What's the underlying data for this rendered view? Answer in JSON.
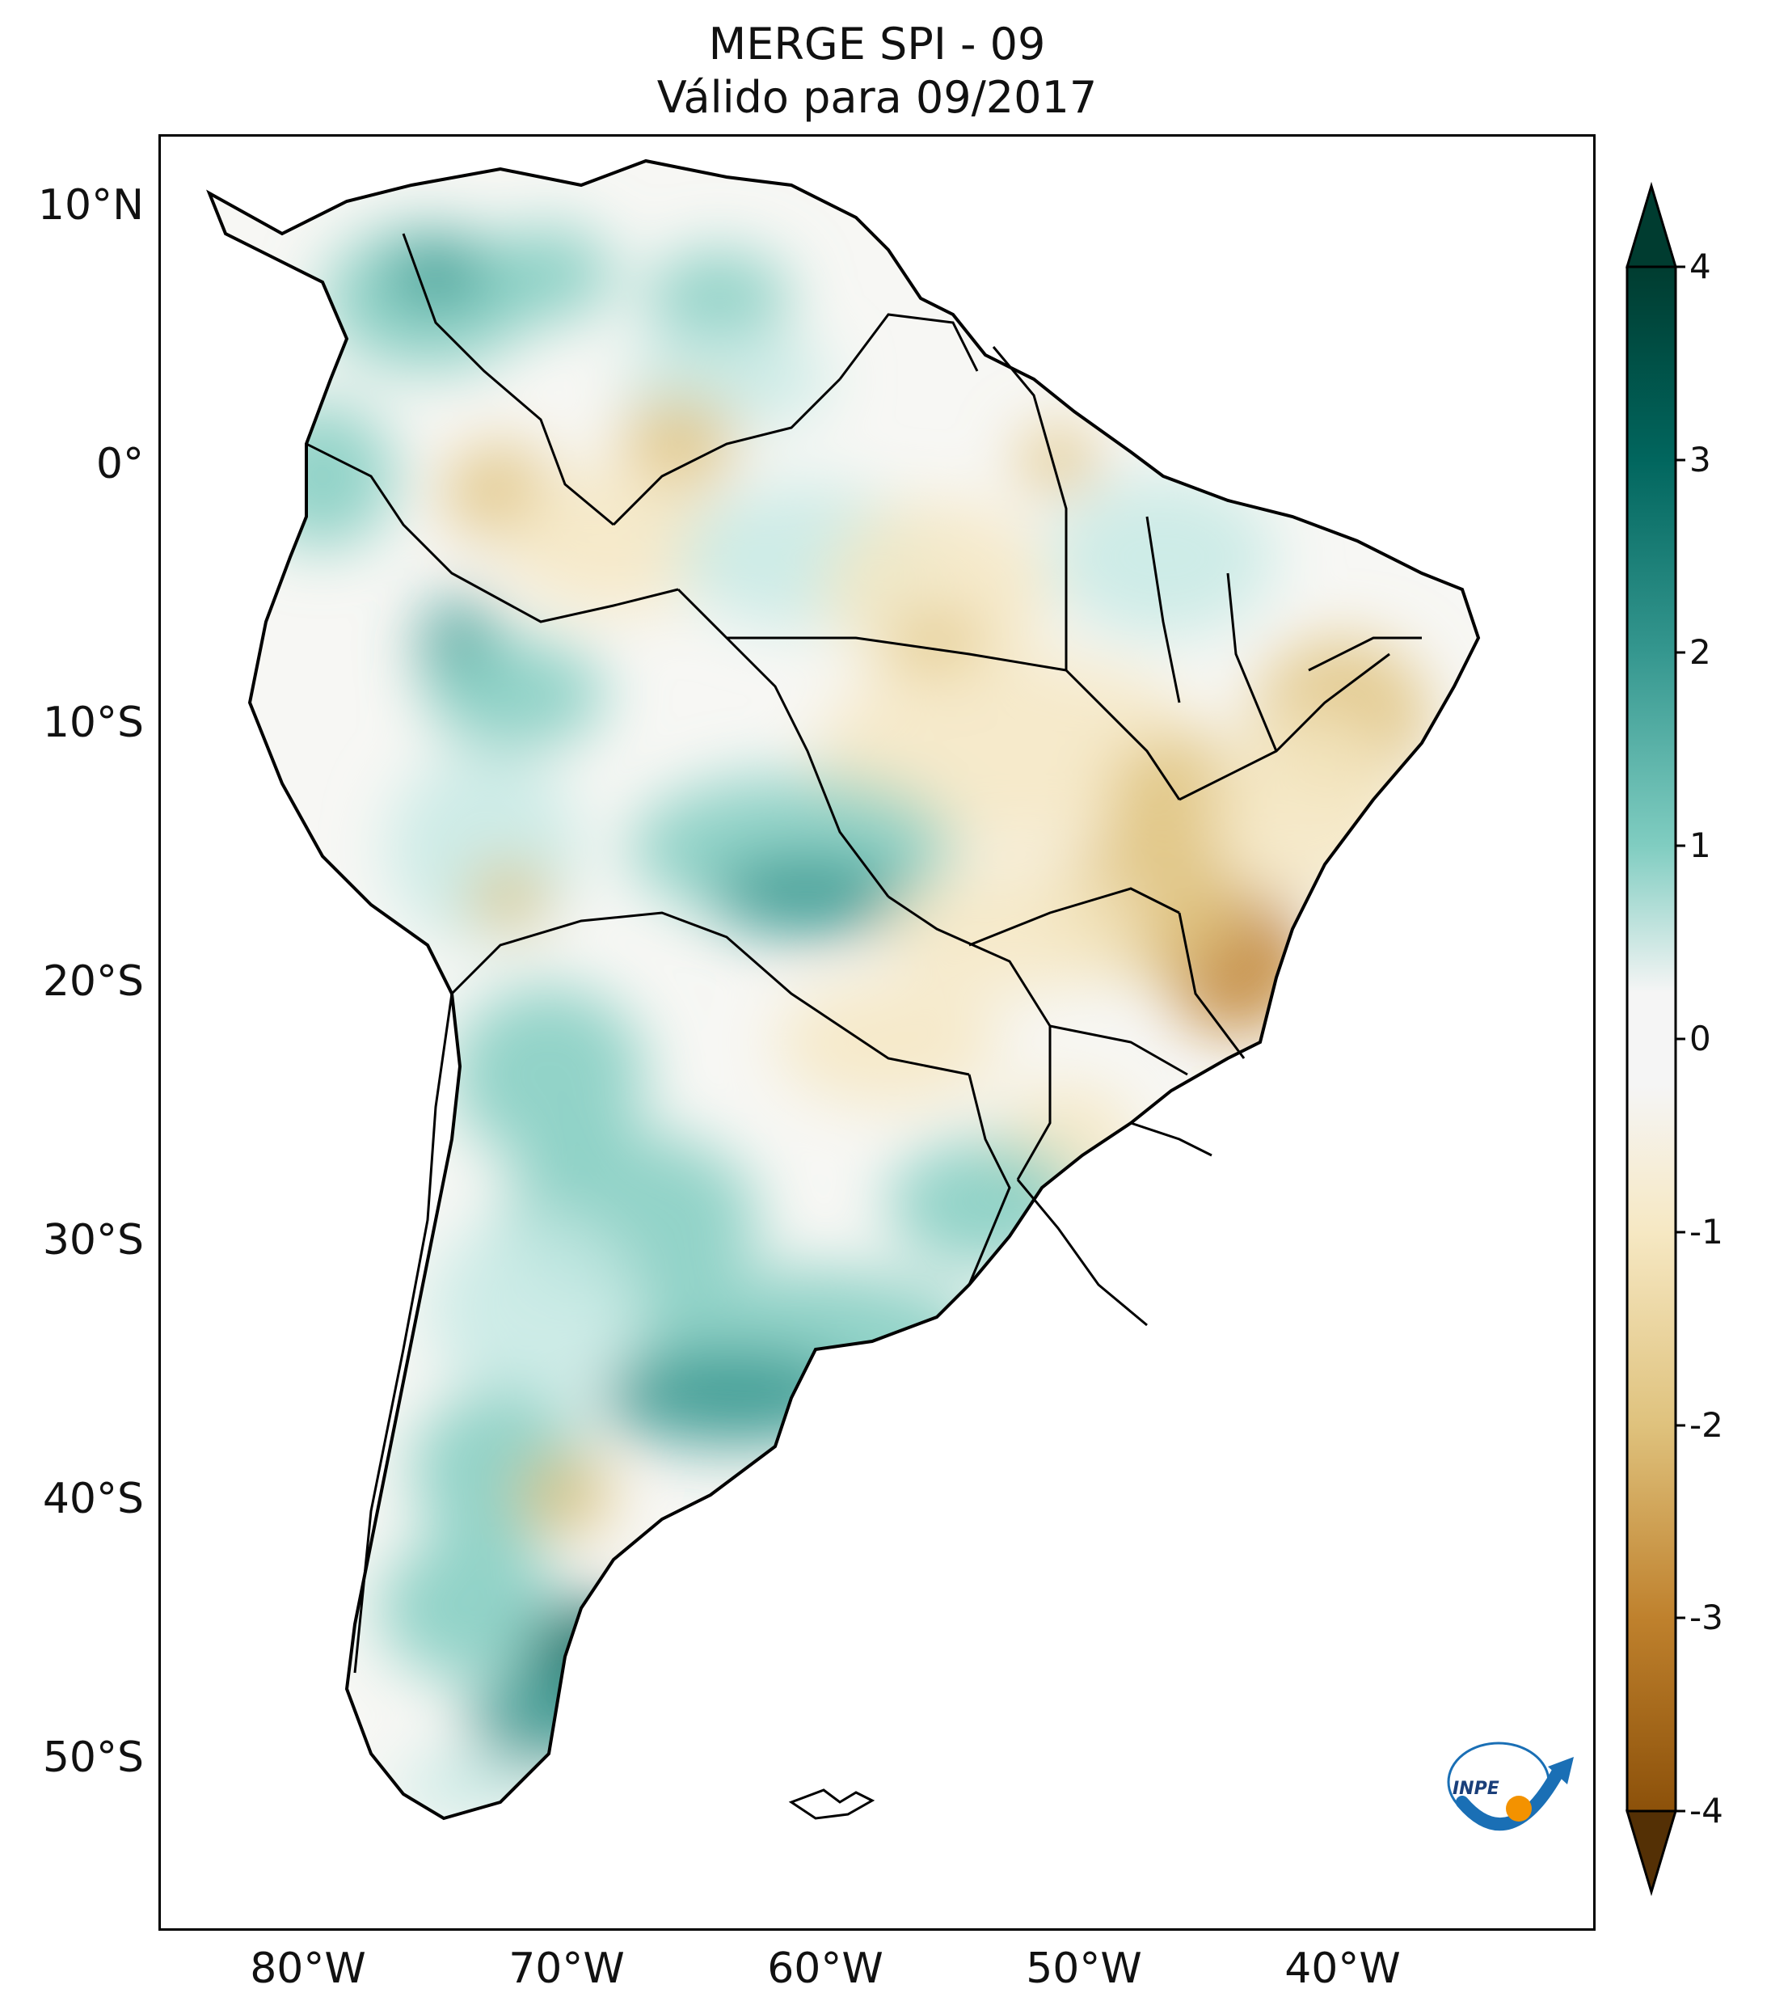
{
  "title": {
    "line1": "MERGE   SPI - 09",
    "line2": "Válido para 09/2017"
  },
  "latitude_labels": [
    "10°N",
    "0°",
    "10°S",
    "20°S",
    "30°S",
    "40°S",
    "50°S"
  ],
  "longitude_labels": [
    "80°W",
    "70°W",
    "60°W",
    "50°W",
    "40°W"
  ],
  "colorbar": {
    "ticks": [
      "4",
      "3",
      "2",
      "1",
      "0",
      "-1",
      "-2",
      "-3",
      "-4"
    ],
    "colors": {
      "max": "#003c30",
      "high": "#01665e",
      "mid_high": "#35978f",
      "low_high": "#80cdc1",
      "pale_teal": "#c7eae5",
      "neutral": "#f5f5f5",
      "pale_brown": "#f6e8c3",
      "low_brown": "#dfc27d",
      "mid_brown": "#bf812d",
      "high_brown": "#8c510a",
      "min": "#543005"
    }
  },
  "logo": {
    "text": "INPE",
    "orbit_color": "#1a6fb5",
    "sun_color": "#f39200"
  }
}
